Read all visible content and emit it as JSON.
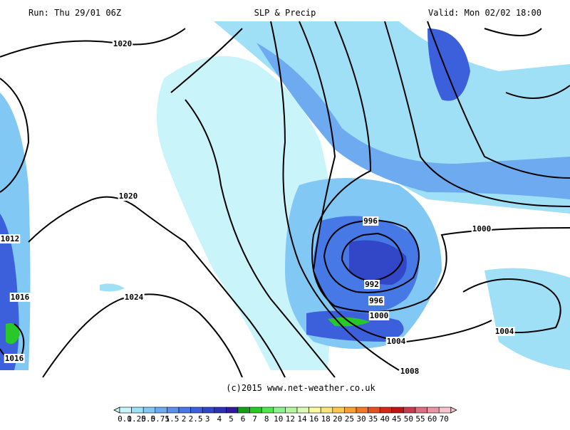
{
  "header": {
    "run": "Run: Thu 29/01 06Z",
    "title": "SLP & Precip",
    "valid": "Valid: Mon 02/02 18:00"
  },
  "isobar_labels": [
    "1020",
    "1020",
    "1024",
    "1012",
    "1016",
    "1016",
    "996",
    "992",
    "996",
    "1000",
    "1004",
    "1008",
    "1000",
    "1004"
  ],
  "copyright": "(c)2015 www.net-weather.co.uk",
  "colorbar": {
    "labels": [
      "0.1",
      "0.25",
      "0.5",
      "0.75",
      "1.5",
      "2",
      "2.5",
      "3",
      "4",
      "5",
      "6",
      "7",
      "8",
      "10",
      "12",
      "14",
      "16",
      "18",
      "20",
      "25",
      "30",
      "35",
      "40",
      "45",
      "50",
      "55",
      "60",
      "70"
    ],
    "colors": [
      "#c8f4fa",
      "#9fe0f7",
      "#82c8f5",
      "#6eaaf0",
      "#5a91eb",
      "#4678e6",
      "#3c5fdc",
      "#3246c8",
      "#2d32b4",
      "#32199b",
      "#14a014",
      "#28c828",
      "#50e650",
      "#8cf08c",
      "#b4f5a0",
      "#dcfab4",
      "#fafaa0",
      "#fae678",
      "#fac850",
      "#faa032",
      "#f07828",
      "#e6501e",
      "#d22814",
      "#be1414",
      "#c83c50",
      "#dc6e82",
      "#eb96a5",
      "#f5c3cd"
    ]
  }
}
